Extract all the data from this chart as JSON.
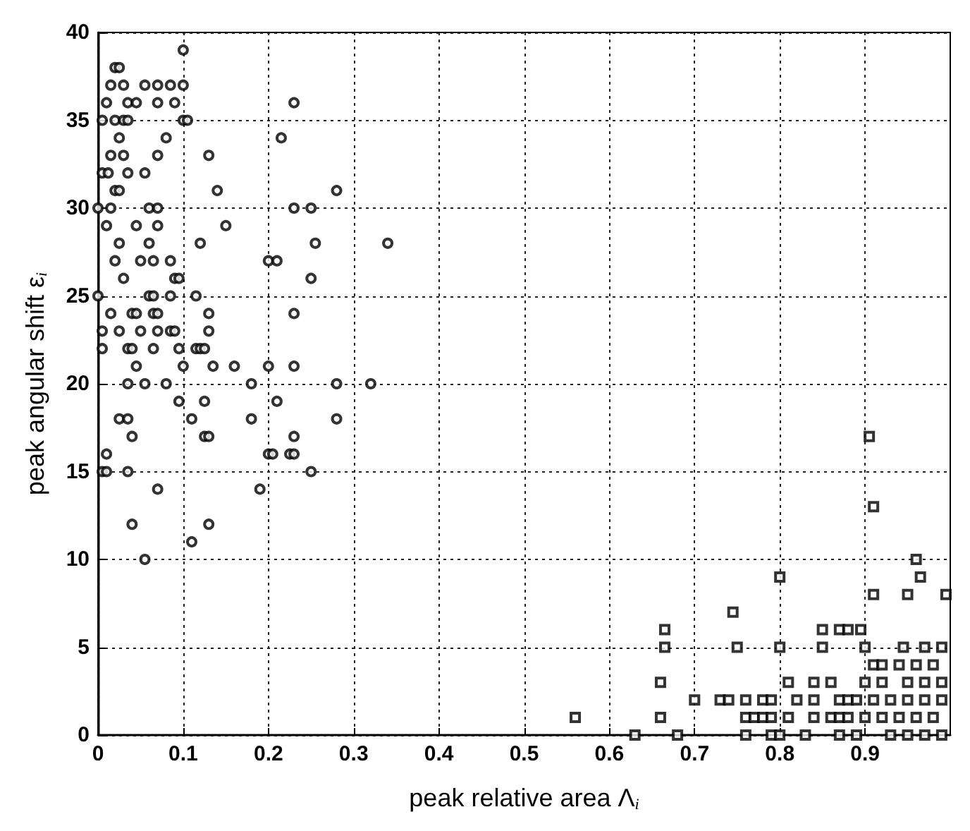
{
  "chart_data": {
    "type": "scatter",
    "xlabel": "peak relative area Λ$_{i}$",
    "ylabel": "peak angular shift ε$_{i}$",
    "xlim": [
      0,
      1
    ],
    "xticks": [
      0,
      0.1,
      0.2,
      0.3,
      0.4,
      0.5,
      0.6,
      0.7,
      0.8,
      0.9
    ],
    "ylim": [
      0,
      40
    ],
    "yticks": [
      0,
      5,
      10,
      15,
      20,
      25,
      30,
      35,
      40
    ],
    "grid": true,
    "series": [
      {
        "color": "#000000",
        "marker": "circle",
        "x": [
          0.1,
          0.02,
          0.025,
          0.015,
          0.03,
          0.055,
          0.07,
          0.085,
          0.1,
          0.01,
          0.035,
          0.045,
          0.07,
          0.09,
          0.23,
          0.005,
          0.02,
          0.03,
          0.035,
          0.1,
          0.105,
          0.025,
          0.08,
          0.215,
          0.015,
          0.03,
          0.07,
          0.13,
          0.005,
          0.012,
          0.035,
          0.055,
          0.02,
          0.025,
          0.14,
          0.28,
          0.0,
          0.015,
          0.06,
          0.07,
          0.23,
          0.25,
          0.01,
          0.045,
          0.07,
          0.15,
          0.025,
          0.06,
          0.12,
          0.255,
          0.34,
          0.02,
          0.05,
          0.065,
          0.085,
          0.2,
          0.21,
          0.03,
          0.09,
          0.095,
          0.25,
          0.0,
          0.06,
          0.065,
          0.085,
          0.115,
          0.015,
          0.04,
          0.045,
          0.065,
          0.07,
          0.13,
          0.23,
          0.005,
          0.025,
          0.05,
          0.07,
          0.085,
          0.09,
          0.13,
          0.005,
          0.035,
          0.04,
          0.065,
          0.095,
          0.115,
          0.12,
          0.125,
          0.045,
          0.1,
          0.135,
          0.16,
          0.2,
          0.23,
          0.035,
          0.055,
          0.08,
          0.18,
          0.28,
          0.32,
          0.095,
          0.125,
          0.21,
          0.025,
          0.035,
          0.11,
          0.18,
          0.28,
          0.04,
          0.125,
          0.13,
          0.23,
          0.01,
          0.2,
          0.205,
          0.225,
          0.23,
          0.005,
          0.01,
          0.035,
          0.25,
          0.07,
          0.19,
          0.04,
          0.13,
          0.11,
          0.055
        ],
        "values": [
          39,
          38,
          38,
          37,
          37,
          37,
          37,
          37,
          37,
          36,
          36,
          36,
          36,
          36,
          36,
          35,
          35,
          35,
          35,
          35,
          35,
          34,
          34,
          34,
          33,
          33,
          33,
          33,
          32,
          32,
          32,
          32,
          31,
          31,
          31,
          31,
          30,
          30,
          30,
          30,
          30,
          30,
          29,
          29,
          29,
          29,
          28,
          28,
          28,
          28,
          28,
          27,
          27,
          27,
          27,
          27,
          27,
          26,
          26,
          26,
          26,
          25,
          25,
          25,
          25,
          25,
          24,
          24,
          24,
          24,
          24,
          24,
          24,
          23,
          23,
          23,
          23,
          23,
          23,
          23,
          22,
          22,
          22,
          22,
          22,
          22,
          22,
          22,
          21,
          21,
          21,
          21,
          21,
          21,
          20,
          20,
          20,
          20,
          20,
          20,
          19,
          19,
          19,
          18,
          18,
          18,
          18,
          18,
          17,
          17,
          17,
          17,
          16,
          16,
          16,
          16,
          16,
          15,
          15,
          15,
          15,
          14,
          14,
          12,
          12,
          11,
          10
        ]
      },
      {
        "color": "#000000",
        "marker": "square",
        "x": [
          0.905,
          0.91,
          0.96,
          0.8,
          0.965,
          0.91,
          0.95,
          0.995,
          0.745,
          0.665,
          0.85,
          0.87,
          0.88,
          0.895,
          0.665,
          0.75,
          0.8,
          0.85,
          0.9,
          0.945,
          0.97,
          0.99,
          0.91,
          0.92,
          0.94,
          0.96,
          0.98,
          0.66,
          0.81,
          0.84,
          0.86,
          0.9,
          0.92,
          0.95,
          0.97,
          0.99,
          0.7,
          0.73,
          0.74,
          0.76,
          0.78,
          0.79,
          0.82,
          0.84,
          0.87,
          0.88,
          0.89,
          0.91,
          0.93,
          0.95,
          0.97,
          0.99,
          0.56,
          0.66,
          0.76,
          0.77,
          0.78,
          0.79,
          0.81,
          0.84,
          0.86,
          0.87,
          0.88,
          0.9,
          0.92,
          0.94,
          0.96,
          0.98,
          0.63,
          0.68,
          0.76,
          0.79,
          0.8,
          0.83,
          0.87,
          0.89,
          0.93,
          0.95,
          0.97,
          0.99
        ],
        "values": [
          17,
          13,
          10,
          9,
          9,
          8,
          8,
          8,
          7,
          6,
          6,
          6,
          6,
          6,
          5,
          5,
          5,
          5,
          5,
          5,
          5,
          5,
          4,
          4,
          4,
          4,
          4,
          3,
          3,
          3,
          3,
          3,
          3,
          3,
          3,
          3,
          2,
          2,
          2,
          2,
          2,
          2,
          2,
          2,
          2,
          2,
          2,
          2,
          2,
          2,
          2,
          2,
          1,
          1,
          1,
          1,
          1,
          1,
          1,
          1,
          1,
          1,
          1,
          1,
          1,
          1,
          1,
          1,
          0,
          0,
          0,
          0,
          0,
          0,
          0,
          0,
          0,
          0,
          0,
          0
        ]
      }
    ]
  }
}
